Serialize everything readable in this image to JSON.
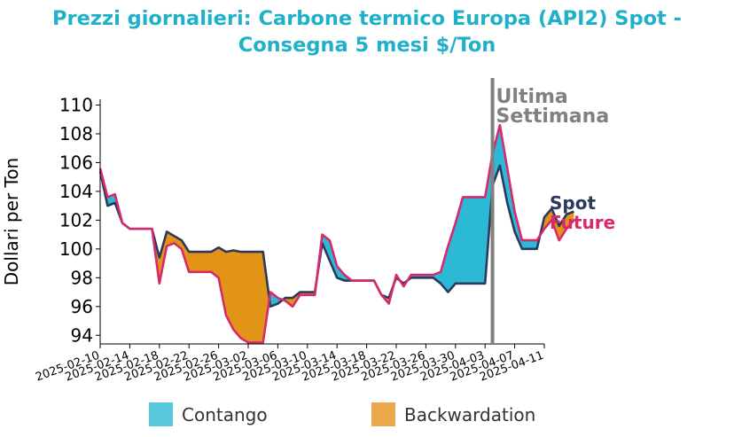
{
  "title_line1": "Prezzi giornalieri: Carbone termico Europa (API2) Spot -",
  "title_line2": "Consegna 5 mesi $/Ton",
  "colors": {
    "title": "#1fb1c9",
    "spot": "#2b3a5c",
    "future": "#d6296e",
    "contango": "#2bb9d6",
    "backwardation": "#e29416",
    "marker": "#808080",
    "contango_legend": "#5ac8dc",
    "backwardation_legend": "#eba84a"
  },
  "legend": {
    "contango": "Contango",
    "backwardation": "Backwardation"
  },
  "chart_data": {
    "type": "area",
    "title": "Prezzi giornalieri: Carbone termico Europa (API2) Spot - Consegna 5 mesi $/Ton",
    "ylabel": "Dollari per Ton",
    "xlabel": "",
    "ylim": [
      93.4,
      110.4
    ],
    "yticks": [
      94,
      96,
      98,
      100,
      102,
      104,
      106,
      108,
      110
    ],
    "xticks": [
      "2025-02-10",
      "2025-02-14",
      "2025-02-18",
      "2025-02-22",
      "2025-02-26",
      "2025-03-02",
      "2025-03-06",
      "2025-03-10",
      "2025-03-14",
      "2025-03-18",
      "2025-03-22",
      "2025-03-26",
      "2025-03-30",
      "2025-04-03",
      "2025-04-07",
      "2025-04-11"
    ],
    "x_start": "2025-02-10",
    "x_end": "2025-04-11",
    "marker": {
      "date": "2025-04-04",
      "label_line1": "Ultima",
      "label_line2": "Settimana"
    },
    "series": [
      {
        "name": "Spot",
        "points": [
          [
            "2025-02-10",
            105.4
          ],
          [
            "2025-02-11",
            103.0
          ],
          [
            "2025-02-12",
            103.2
          ],
          [
            "2025-02-13",
            101.8
          ],
          [
            "2025-02-14",
            101.4
          ],
          [
            "2025-02-17",
            101.4
          ],
          [
            "2025-02-18",
            99.4
          ],
          [
            "2025-02-19",
            101.2
          ],
          [
            "2025-02-21",
            100.6
          ],
          [
            "2025-02-22",
            99.8
          ],
          [
            "2025-02-25",
            99.8
          ],
          [
            "2025-02-26",
            100.1
          ],
          [
            "2025-02-27",
            99.8
          ],
          [
            "2025-02-28",
            99.9
          ],
          [
            "2025-03-01",
            99.8
          ],
          [
            "2025-03-04",
            99.8
          ],
          [
            "2025-03-05",
            96.0
          ],
          [
            "2025-03-06",
            96.2
          ],
          [
            "2025-03-07",
            96.6
          ],
          [
            "2025-03-08",
            96.6
          ],
          [
            "2025-03-09",
            97.0
          ],
          [
            "2025-03-11",
            97.0
          ],
          [
            "2025-03-12",
            100.4
          ],
          [
            "2025-03-13",
            99.2
          ],
          [
            "2025-03-14",
            98.0
          ],
          [
            "2025-03-15",
            97.8
          ],
          [
            "2025-03-17",
            97.8
          ],
          [
            "2025-03-19",
            97.8
          ],
          [
            "2025-03-20",
            96.8
          ],
          [
            "2025-03-21",
            96.6
          ],
          [
            "2025-03-22",
            98.0
          ],
          [
            "2025-03-23",
            97.6
          ],
          [
            "2025-03-24",
            98.0
          ],
          [
            "2025-03-27",
            98.0
          ],
          [
            "2025-03-28",
            97.6
          ],
          [
            "2025-03-29",
            97.0
          ],
          [
            "2025-03-30",
            97.6
          ],
          [
            "2025-04-03",
            97.6
          ],
          [
            "2025-04-04",
            104.4
          ],
          [
            "2025-04-05",
            105.8
          ],
          [
            "2025-04-06",
            103.2
          ],
          [
            "2025-04-07",
            101.2
          ],
          [
            "2025-04-08",
            100.0
          ],
          [
            "2025-04-10",
            100.0
          ],
          [
            "2025-04-11",
            102.2
          ],
          [
            "2025-04-12",
            102.8
          ],
          [
            "2025-04-13",
            101.6
          ],
          [
            "2025-04-14",
            102.4
          ],
          [
            "2025-04-15",
            102.6
          ]
        ]
      },
      {
        "name": "Future",
        "points": [
          [
            "2025-02-10",
            105.6
          ],
          [
            "2025-02-11",
            103.6
          ],
          [
            "2025-02-12",
            103.8
          ],
          [
            "2025-02-13",
            101.8
          ],
          [
            "2025-02-14",
            101.4
          ],
          [
            "2025-02-17",
            101.4
          ],
          [
            "2025-02-18",
            97.6
          ],
          [
            "2025-02-19",
            100.2
          ],
          [
            "2025-02-20",
            100.4
          ],
          [
            "2025-02-21",
            100.0
          ],
          [
            "2025-02-22",
            98.4
          ],
          [
            "2025-02-25",
            98.4
          ],
          [
            "2025-02-26",
            98.0
          ],
          [
            "2025-02-27",
            95.4
          ],
          [
            "2025-02-28",
            94.4
          ],
          [
            "2025-03-01",
            93.8
          ],
          [
            "2025-03-02",
            93.5
          ],
          [
            "2025-03-04",
            93.5
          ],
          [
            "2025-03-05",
            97.0
          ],
          [
            "2025-03-06",
            96.6
          ],
          [
            "2025-03-07",
            96.4
          ],
          [
            "2025-03-08",
            96.0
          ],
          [
            "2025-03-09",
            96.8
          ],
          [
            "2025-03-11",
            96.8
          ],
          [
            "2025-03-12",
            101.0
          ],
          [
            "2025-03-13",
            100.6
          ],
          [
            "2025-03-14",
            98.8
          ],
          [
            "2025-03-15",
            98.2
          ],
          [
            "2025-03-16",
            97.8
          ],
          [
            "2025-03-19",
            97.8
          ],
          [
            "2025-03-20",
            96.8
          ],
          [
            "2025-03-21",
            96.2
          ],
          [
            "2025-03-22",
            98.2
          ],
          [
            "2025-03-23",
            97.4
          ],
          [
            "2025-03-24",
            98.2
          ],
          [
            "2025-03-27",
            98.2
          ],
          [
            "2025-03-28",
            98.4
          ],
          [
            "2025-03-29",
            100.2
          ],
          [
            "2025-03-30",
            101.8
          ],
          [
            "2025-03-31",
            103.6
          ],
          [
            "2025-04-03",
            103.6
          ],
          [
            "2025-04-04",
            106.6
          ],
          [
            "2025-04-05",
            108.6
          ],
          [
            "2025-04-06",
            105.6
          ],
          [
            "2025-04-07",
            102.6
          ],
          [
            "2025-04-08",
            100.6
          ],
          [
            "2025-04-10",
            100.6
          ],
          [
            "2025-04-11",
            101.4
          ],
          [
            "2025-04-12",
            102.0
          ],
          [
            "2025-04-13",
            100.6
          ],
          [
            "2025-04-14",
            101.4
          ],
          [
            "2025-04-15",
            102.0
          ]
        ]
      }
    ]
  }
}
